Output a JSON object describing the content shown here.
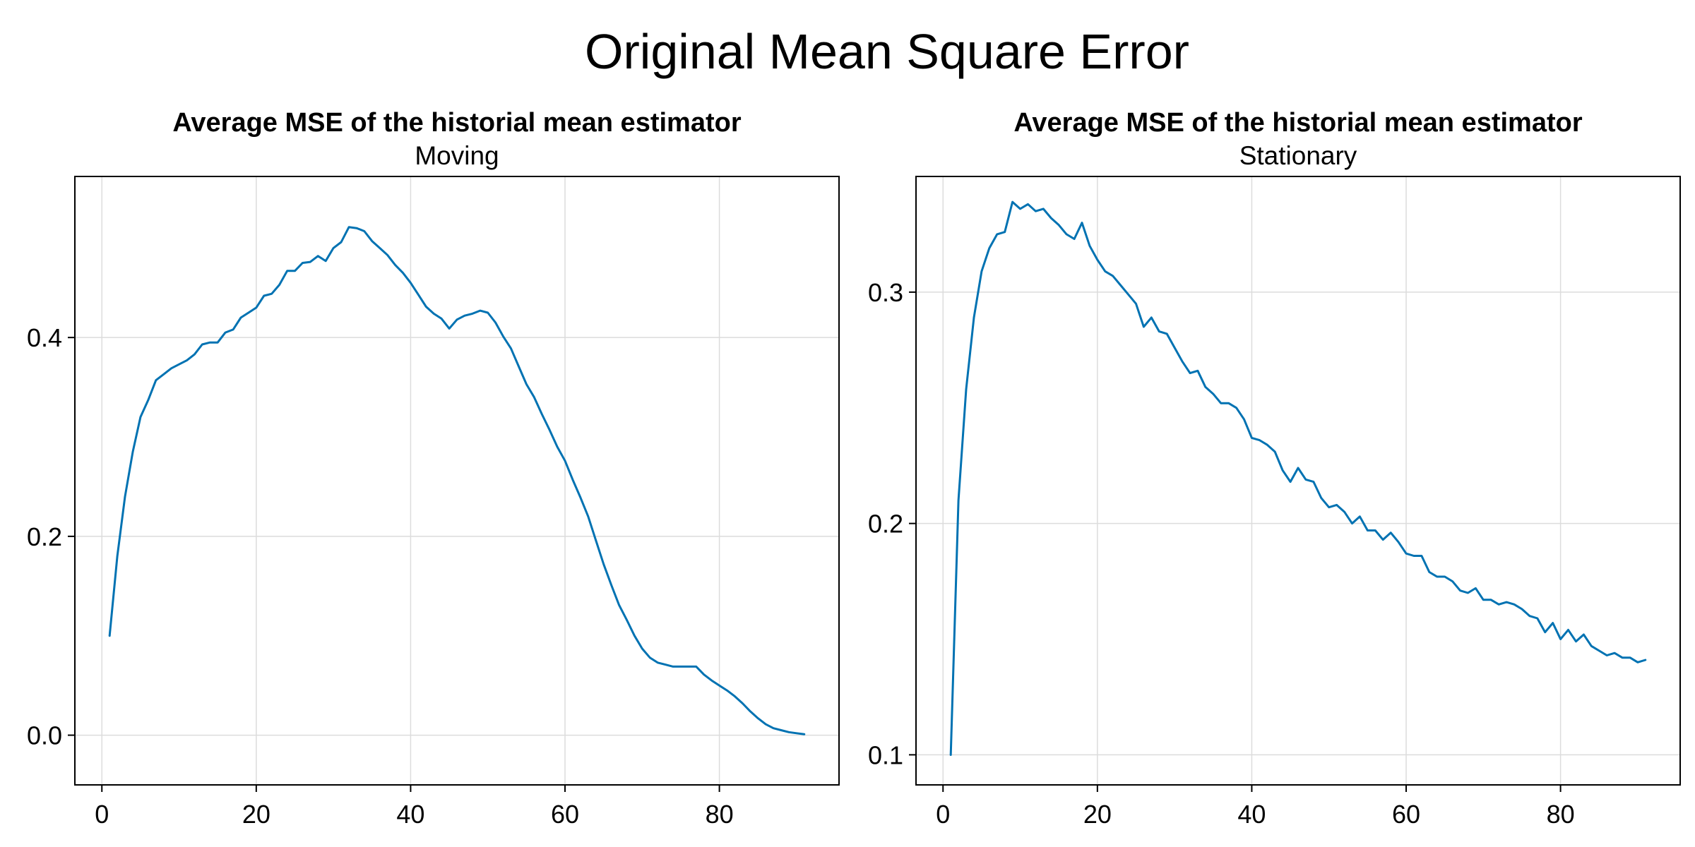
{
  "figure": {
    "title": "Original Mean Square Error"
  },
  "colors": {
    "line": "#0072b2",
    "grid": "#dcdcdc",
    "frame": "#000000"
  },
  "chart_data": [
    {
      "type": "line",
      "title": "Average MSE of the historial mean estimator",
      "subtitle": "Moving",
      "xlabel": "",
      "ylabel": "",
      "xlim": [
        -3.5,
        95.5
      ],
      "ylim": [
        -0.05,
        0.562
      ],
      "xticks": [
        0,
        20,
        40,
        60,
        80
      ],
      "xtick_labels": [
        "0",
        "20",
        "40",
        "60",
        "80"
      ],
      "yticks": [
        0.0,
        0.2,
        0.4
      ],
      "ytick_labels": [
        "0.0",
        "0.2",
        "0.4"
      ],
      "grid": true,
      "series": [
        {
          "color": "#0072b2",
          "x": [
            1,
            2,
            3,
            4,
            5,
            6,
            7,
            8,
            9,
            10,
            11,
            12,
            13,
            14,
            15,
            16,
            17,
            18,
            19,
            20,
            21,
            22,
            23,
            24,
            25,
            26,
            27,
            28,
            29,
            30,
            31,
            32,
            33,
            34,
            35,
            36,
            37,
            38,
            39,
            40,
            41,
            42,
            43,
            44,
            45,
            46,
            47,
            48,
            49,
            50,
            51,
            52,
            53,
            54,
            55,
            56,
            57,
            58,
            59,
            60,
            61,
            62,
            63,
            64,
            65,
            66,
            67,
            68,
            69,
            70,
            71,
            72,
            73,
            74,
            75,
            76,
            77,
            78,
            79,
            80,
            81,
            82,
            83,
            84,
            85,
            86,
            87,
            88,
            89,
            90,
            91
          ],
          "y": [
            0.1,
            0.18,
            0.24,
            0.285,
            0.32,
            0.337,
            0.357,
            0.363,
            0.369,
            0.373,
            0.377,
            0.383,
            0.393,
            0.395,
            0.395,
            0.405,
            0.408,
            0.42,
            0.425,
            0.43,
            0.442,
            0.444,
            0.453,
            0.467,
            0.467,
            0.475,
            0.476,
            0.482,
            0.477,
            0.49,
            0.496,
            0.511,
            0.51,
            0.507,
            0.497,
            0.49,
            0.483,
            0.473,
            0.465,
            0.455,
            0.443,
            0.431,
            0.424,
            0.419,
            0.409,
            0.418,
            0.422,
            0.424,
            0.427,
            0.425,
            0.415,
            0.401,
            0.389,
            0.371,
            0.353,
            0.34,
            0.323,
            0.307,
            0.29,
            0.276,
            0.257,
            0.239,
            0.22,
            0.196,
            0.172,
            0.151,
            0.131,
            0.116,
            0.1,
            0.087,
            0.078,
            0.073,
            0.071,
            0.069,
            0.069,
            0.069,
            0.069,
            0.061,
            0.055,
            0.05,
            0.045,
            0.039,
            0.032,
            0.024,
            0.017,
            0.011,
            0.007,
            0.005,
            0.003,
            0.002,
            0.001
          ]
        }
      ]
    },
    {
      "type": "line",
      "title": "Average MSE of the historial mean estimator",
      "subtitle": "Stationary",
      "xlabel": "",
      "ylabel": "",
      "xlim": [
        -3.5,
        95.5
      ],
      "ylim": [
        0.087,
        0.35
      ],
      "xticks": [
        0,
        20,
        40,
        60,
        80
      ],
      "xtick_labels": [
        "0",
        "20",
        "40",
        "60",
        "80"
      ],
      "yticks": [
        0.1,
        0.2,
        0.3
      ],
      "ytick_labels": [
        "0.1",
        "0.2",
        "0.3"
      ],
      "grid": true,
      "series": [
        {
          "color": "#0072b2",
          "x": [
            1,
            2,
            3,
            4,
            5,
            6,
            7,
            8,
            9,
            10,
            11,
            12,
            13,
            14,
            15,
            16,
            17,
            18,
            19,
            20,
            21,
            22,
            23,
            24,
            25,
            26,
            27,
            28,
            29,
            30,
            31,
            32,
            33,
            34,
            35,
            36,
            37,
            38,
            39,
            40,
            41,
            42,
            43,
            44,
            45,
            46,
            47,
            48,
            49,
            50,
            51,
            52,
            53,
            54,
            55,
            56,
            57,
            58,
            59,
            60,
            61,
            62,
            63,
            64,
            65,
            66,
            67,
            68,
            69,
            70,
            71,
            72,
            73,
            74,
            75,
            76,
            77,
            78,
            79,
            80,
            81,
            82,
            83,
            84,
            85,
            86,
            87,
            88,
            89,
            90,
            91
          ],
          "y": [
            0.1,
            0.21,
            0.258,
            0.289,
            0.309,
            0.319,
            0.325,
            0.326,
            0.339,
            0.336,
            0.338,
            0.335,
            0.336,
            0.332,
            0.329,
            0.325,
            0.323,
            0.33,
            0.32,
            0.314,
            0.309,
            0.307,
            0.303,
            0.299,
            0.295,
            0.285,
            0.289,
            0.283,
            0.282,
            0.276,
            0.27,
            0.265,
            0.266,
            0.259,
            0.256,
            0.252,
            0.252,
            0.25,
            0.245,
            0.237,
            0.236,
            0.234,
            0.231,
            0.223,
            0.218,
            0.224,
            0.219,
            0.218,
            0.211,
            0.207,
            0.208,
            0.205,
            0.2,
            0.203,
            0.197,
            0.197,
            0.193,
            0.196,
            0.192,
            0.187,
            0.186,
            0.186,
            0.179,
            0.177,
            0.177,
            0.175,
            0.171,
            0.17,
            0.172,
            0.167,
            0.167,
            0.165,
            0.166,
            0.165,
            0.163,
            0.16,
            0.159,
            0.153,
            0.157,
            0.15,
            0.154,
            0.149,
            0.152,
            0.147,
            0.145,
            0.143,
            0.144,
            0.142,
            0.142,
            0.14,
            0.141
          ]
        }
      ]
    }
  ]
}
